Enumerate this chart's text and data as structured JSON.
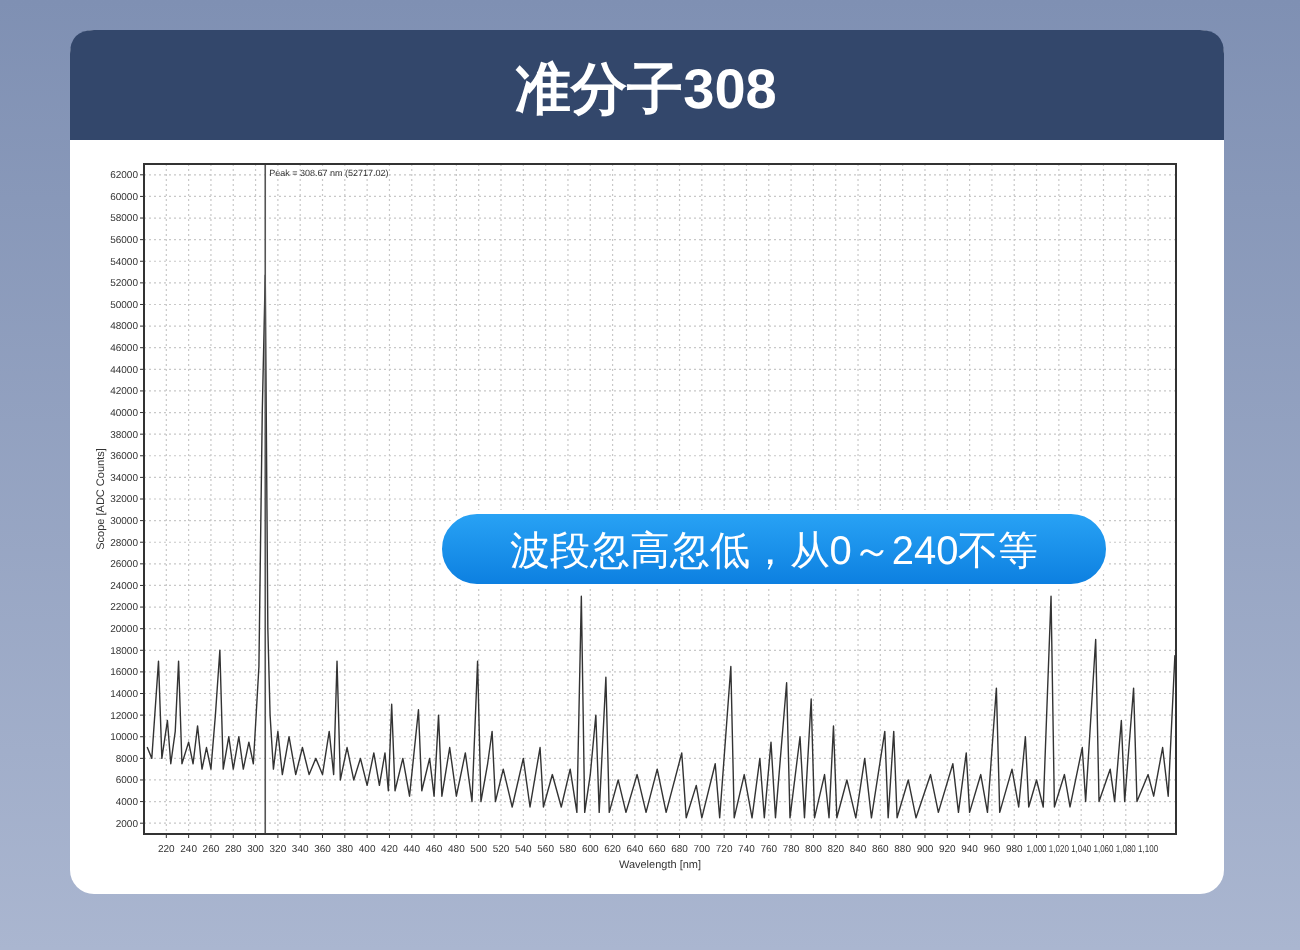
{
  "chart_data": {
    "type": "line",
    "title": "准分子308",
    "xlabel": "Wavelength [nm]",
    "ylabel": "Scope [ADC Counts]",
    "annotations": [
      "波段忽高忽低，从0～240不等"
    ],
    "xlim": [
      200,
      1125
    ],
    "ylim": [
      1000,
      63000
    ],
    "xticks": [
      220,
      240,
      260,
      280,
      300,
      320,
      340,
      360,
      380,
      400,
      420,
      440,
      460,
      480,
      500,
      520,
      540,
      560,
      580,
      600,
      620,
      640,
      660,
      680,
      700,
      720,
      740,
      760,
      780,
      800,
      820,
      840,
      860,
      880,
      900,
      920,
      940,
      960,
      980,
      {
        "value": 1000,
        "label": "1,000"
      },
      {
        "value": 1020,
        "label": "1,020"
      },
      {
        "value": 1040,
        "label": "1,040"
      },
      {
        "value": 1060,
        "label": "1,060"
      },
      {
        "value": 1080,
        "label": "1,080"
      },
      {
        "value": 1100,
        "label": "1,100"
      }
    ],
    "yticks": [
      2000,
      4000,
      6000,
      8000,
      10000,
      12000,
      14000,
      16000,
      18000,
      20000,
      22000,
      24000,
      26000,
      28000,
      30000,
      32000,
      34000,
      36000,
      38000,
      40000,
      42000,
      44000,
      46000,
      48000,
      50000,
      52000,
      54000,
      56000,
      58000,
      60000,
      62000
    ],
    "grid": true,
    "line_style": "solid",
    "ref_lines": [
      {
        "axis": "x",
        "value": 308.67,
        "label": "Peak = 308.67 nm (52717.02)",
        "color": "#555555"
      }
    ],
    "series": [
      {
        "color": "#333333",
        "x": [
          203,
          207,
          213,
          216,
          221,
          224,
          228,
          231,
          234,
          240,
          244,
          248,
          252,
          256,
          260,
          264,
          268,
          271,
          276,
          280,
          285,
          289,
          294,
          298,
          303,
          306,
          308.67,
          311,
          313,
          316,
          320,
          324,
          330,
          336,
          342,
          348,
          354,
          360,
          366,
          370,
          373,
          376,
          382,
          388,
          394,
          400,
          406,
          411,
          416,
          419,
          422,
          425,
          432,
          438,
          446,
          449,
          456,
          460,
          464,
          467,
          474,
          480,
          488,
          494,
          499,
          502,
          508,
          512,
          515,
          522,
          530,
          540,
          546,
          555,
          558,
          566,
          574,
          582,
          588,
          592,
          595,
          600,
          605,
          608,
          614,
          617,
          625,
          632,
          642,
          650,
          660,
          668,
          682,
          686,
          695,
          700,
          712,
          716,
          726,
          729,
          738,
          745,
          752,
          756,
          762,
          766,
          776,
          779,
          788,
          792,
          798,
          801,
          810,
          814,
          818,
          821,
          830,
          838,
          846,
          852,
          864,
          867,
          872,
          875,
          885,
          892,
          905,
          912,
          925,
          930,
          937,
          940,
          950,
          956,
          964,
          967,
          978,
          984,
          990,
          993,
          1000,
          1006,
          1013,
          1016,
          1025,
          1030,
          1041,
          1044,
          1053,
          1056,
          1066,
          1070,
          1076,
          1079,
          1087,
          1090,
          1100,
          1105,
          1113,
          1118,
          1124
        ],
        "values": [
          9000,
          8000,
          17000,
          8000,
          11500,
          7500,
          10500,
          17000,
          7500,
          9500,
          7500,
          11000,
          7000,
          9000,
          7000,
          12000,
          18000,
          7000,
          10000,
          7000,
          10000,
          7000,
          9500,
          7500,
          16500,
          40000,
          52717,
          20000,
          12000,
          7000,
          10500,
          6500,
          10000,
          6500,
          9000,
          6500,
          8000,
          6500,
          10500,
          6500,
          17000,
          6000,
          9000,
          6000,
          8000,
          5500,
          8500,
          5500,
          8500,
          5000,
          13000,
          5000,
          8000,
          4500,
          12500,
          5000,
          8000,
          4500,
          12000,
          4500,
          9000,
          4500,
          8500,
          4000,
          17000,
          4000,
          7500,
          10500,
          4000,
          7000,
          3500,
          8000,
          3500,
          9000,
          3500,
          6500,
          3500,
          7000,
          3000,
          23000,
          3000,
          6500,
          12000,
          3000,
          15500,
          3000,
          6000,
          3000,
          6500,
          3000,
          7000,
          3000,
          8500,
          2500,
          5500,
          2500,
          7500,
          2500,
          16500,
          2500,
          6500,
          2500,
          8000,
          2500,
          9500,
          2500,
          15000,
          2500,
          10000,
          2500,
          13500,
          2500,
          6500,
          2500,
          11000,
          2500,
          6000,
          2500,
          8000,
          2500,
          10500,
          2500,
          10500,
          2500,
          6000,
          2500,
          6500,
          3000,
          7500,
          3000,
          8500,
          3000,
          6500,
          3000,
          14500,
          3000,
          7000,
          3500,
          10000,
          3500,
          6000,
          3500,
          23000,
          3500,
          6500,
          3500,
          9000,
          4000,
          19000,
          4000,
          7000,
          4000,
          11500,
          4000,
          14500,
          4000,
          6500,
          4500,
          9000,
          4500,
          17500
        ]
      }
    ]
  }
}
